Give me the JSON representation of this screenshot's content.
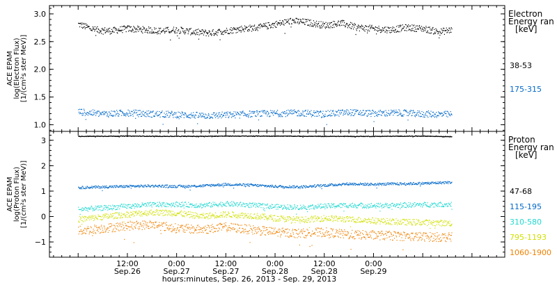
{
  "chart_data": [
    {
      "type": "scatter",
      "panel": "electron",
      "ylabel": [
        "ACE EPAM",
        "log(Electron Flux)",
        "[1/(cm²s ster MeV)]"
      ],
      "ylim": [
        0.88,
        3.15
      ],
      "yticks": [
        1.0,
        1.5,
        2.0,
        2.5,
        3.0
      ],
      "ytick_labels": [
        "1.0",
        "1.5",
        "2.0",
        "2.5",
        "3.0"
      ],
      "legend_title": [
        "Electron",
        "Energy ran",
        "[keV]"
      ],
      "legend_position": "right",
      "series": [
        {
          "name": "38-53",
          "color": "#000000",
          "x": [
            0,
            4,
            8,
            12,
            16,
            20,
            24,
            28,
            32,
            36,
            40,
            44,
            48,
            52,
            56,
            60,
            64,
            68,
            72,
            76,
            80,
            84,
            88,
            91
          ],
          "y": [
            2.82,
            2.72,
            2.7,
            2.74,
            2.72,
            2.7,
            2.72,
            2.68,
            2.66,
            2.7,
            2.74,
            2.76,
            2.82,
            2.88,
            2.85,
            2.8,
            2.84,
            2.76,
            2.74,
            2.72,
            2.76,
            2.74,
            2.68,
            2.72
          ]
        },
        {
          "name": "175-315",
          "color": "#0068c8",
          "x": [
            0,
            6,
            12,
            18,
            24,
            30,
            36,
            42,
            48,
            54,
            60,
            66,
            72,
            78,
            84,
            91
          ],
          "y": [
            1.24,
            1.2,
            1.22,
            1.2,
            1.19,
            1.17,
            1.18,
            1.2,
            1.21,
            1.22,
            1.2,
            1.23,
            1.21,
            1.22,
            1.2,
            1.19
          ]
        }
      ]
    },
    {
      "type": "scatter",
      "panel": "proton",
      "ylabel": [
        "ACE EPAM",
        "log(Proton Flux)",
        "[1/(cm²s ster MeV)]"
      ],
      "ylim": [
        -1.6,
        3.35
      ],
      "yticks": [
        -1,
        0,
        1,
        2,
        3
      ],
      "ytick_labels": [
        "−1",
        "0",
        "1",
        "2",
        "3"
      ],
      "legend_title": [
        "Proton",
        "Energy ran",
        "[keV]"
      ],
      "legend_position": "right",
      "series": [
        {
          "name": "47-68",
          "color": "#000000",
          "x": [
            0,
            12,
            24,
            36,
            48,
            60,
            72,
            84,
            91
          ],
          "y": [
            3.17,
            3.18,
            3.17,
            3.18,
            3.18,
            3.17,
            3.17,
            3.18,
            3.16
          ]
        },
        {
          "name": "115-195",
          "color": "#0068c8",
          "x": [
            0,
            6,
            12,
            18,
            24,
            30,
            36,
            42,
            48,
            54,
            60,
            66,
            72,
            78,
            84,
            91
          ],
          "y": [
            1.15,
            1.18,
            1.2,
            1.22,
            1.2,
            1.22,
            1.28,
            1.25,
            1.2,
            1.18,
            1.24,
            1.3,
            1.28,
            1.3,
            1.32,
            1.36
          ]
        },
        {
          "name": "310-580",
          "color": "#20d8d0",
          "x": [
            0,
            6,
            12,
            18,
            24,
            30,
            36,
            42,
            48,
            54,
            60,
            66,
            72,
            78,
            84,
            91
          ],
          "y": [
            0.3,
            0.35,
            0.42,
            0.48,
            0.5,
            0.45,
            0.52,
            0.46,
            0.4,
            0.38,
            0.42,
            0.46,
            0.44,
            0.46,
            0.48,
            0.5
          ]
        },
        {
          "name": "795-1193",
          "color": "#d0e000",
          "x": [
            0,
            6,
            12,
            18,
            24,
            30,
            36,
            42,
            48,
            54,
            60,
            66,
            72,
            78,
            84,
            91
          ],
          "y": [
            -0.1,
            0.0,
            0.1,
            0.18,
            0.15,
            0.02,
            0.1,
            0.05,
            -0.05,
            -0.12,
            -0.05,
            -0.1,
            -0.15,
            -0.2,
            -0.22,
            -0.25
          ]
        },
        {
          "name": "1060-1900",
          "color": "#f08000",
          "x": [
            0,
            6,
            12,
            18,
            24,
            30,
            36,
            42,
            48,
            54,
            60,
            66,
            72,
            78,
            84,
            91
          ],
          "y": [
            -0.55,
            -0.45,
            -0.35,
            -0.3,
            -0.45,
            -0.5,
            -0.4,
            -0.5,
            -0.6,
            -0.65,
            -0.6,
            -0.7,
            -0.72,
            -0.75,
            -0.78,
            -0.8
          ]
        }
      ]
    }
  ],
  "xaxis": {
    "label": "hours:minutes, Sep. 26, 2013 - Sep. 29, 2013",
    "range_hours": [
      -7,
      104
    ],
    "major_ticks": [
      {
        "t": 12,
        "time": "12:00",
        "date": "Sep.26"
      },
      {
        "t": 24,
        "time": "0:00",
        "date": "Sep.27"
      },
      {
        "t": 36,
        "time": "12:00",
        "date": "Sep.27"
      },
      {
        "t": 48,
        "time": "0:00",
        "date": "Sep.28"
      },
      {
        "t": 60,
        "time": "12:00",
        "date": "Sep.28"
      },
      {
        "t": 72,
        "time": "0:00",
        "date": "Sep.29"
      }
    ]
  }
}
